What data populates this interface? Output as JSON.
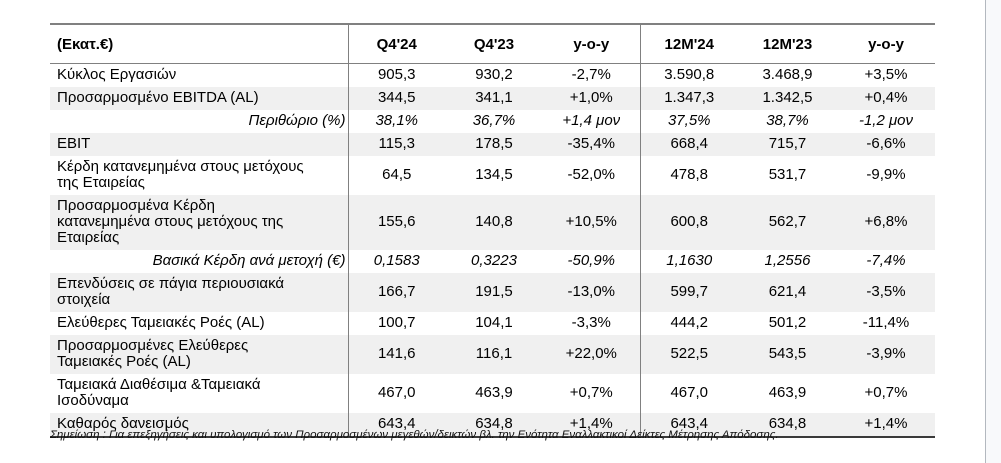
{
  "table": {
    "unit_label": "(Εκατ.€)",
    "columns": [
      "Q4'24",
      "Q4'23",
      "y-o-y",
      "12M'24",
      "12M'23",
      "y-o-y"
    ],
    "rows": [
      {
        "label": "Κύκλος Εργασιών",
        "emphasis": "normal",
        "values": [
          "905,3",
          "930,2",
          "-2,7%",
          "3.590,8",
          "3.468,9",
          "+3,5%"
        ]
      },
      {
        "label": "Προσαρμοσμένο EBITDA (AL)",
        "emphasis": "normal",
        "values": [
          "344,5",
          "341,1",
          "+1,0%",
          "1.347,3",
          "1.342,5",
          "+0,4%"
        ]
      },
      {
        "label": "Περιθώριο (%)",
        "emphasis": "sub",
        "values": [
          "38,1%",
          "36,7%",
          "+1,4 μον",
          "37,5%",
          "38,7%",
          "-1,2 μον"
        ]
      },
      {
        "label": "EBIT",
        "emphasis": "normal",
        "values": [
          "115,3",
          "178,5",
          "-35,4%",
          "668,4",
          "715,7",
          "-6,6%"
        ]
      },
      {
        "label": "Κέρδη κατανεμημένα στους μετόχους της Εταιρείας",
        "emphasis": "normal",
        "values": [
          "64,5",
          "134,5",
          "-52,0%",
          "478,8",
          "531,7",
          "-9,9%"
        ]
      },
      {
        "label": "Προσαρμοσμένα Κέρδη κατανεμημένα στους μετόχους της Εταιρείας",
        "emphasis": "normal",
        "values": [
          "155,6",
          "140,8",
          "+10,5%",
          "600,8",
          "562,7",
          "+6,8%"
        ]
      },
      {
        "label": "Βασικά Κέρδη ανά μετοχή (€)",
        "emphasis": "sub",
        "values": [
          "0,1583",
          "0,3223",
          "-50,9%",
          "1,1630",
          "1,2556",
          "-7,4%"
        ]
      },
      {
        "label": "Επενδύσεις σε πάγια περιουσιακά στοιχεία",
        "emphasis": "normal",
        "values": [
          "166,7",
          "191,5",
          "-13,0%",
          "599,7",
          "621,4",
          "-3,5%"
        ]
      },
      {
        "label": "Ελεύθερες Ταμειακές Ροές (AL)",
        "emphasis": "normal",
        "values": [
          "100,7",
          "104,1",
          "-3,3%",
          "444,2",
          "501,2",
          "-11,4%"
        ]
      },
      {
        "label": "Προσαρμοσμένες Ελεύθερες Ταμειακές Ροές (AL)",
        "emphasis": "normal",
        "values": [
          "141,6",
          "116,1",
          "+22,0%",
          "522,5",
          "543,5",
          "-3,9%"
        ]
      },
      {
        "label": "Ταμειακά Διαθέσιμα &Ταμειακά Ισοδύναμα",
        "emphasis": "normal",
        "values": [
          "467,0",
          "463,9",
          "+0,7%",
          "467,0",
          "463,9",
          "+0,7%"
        ]
      },
      {
        "label": "Καθαρός δανεισμός",
        "emphasis": "normal",
        "values": [
          "643,4",
          "634,8",
          "+1,4%",
          "643,4",
          "634,8",
          "+1,4%"
        ]
      }
    ]
  },
  "footnote": "Σημείωση : Για επεξηγήσεις και υπολογισμό των Προσαρμοσμένων μεγεθών/δεικτών βλ. την Ενότητα Εναλλακτικοί Δείκτες Μέτρησης Απόδοσης.",
  "colors": {
    "row_shade": "#f0f0f0",
    "grid_line": "#808080",
    "bottom_border": "#3a3a3a",
    "page_edge": "#b3b8bf",
    "gutter": "#f8f9fb"
  }
}
